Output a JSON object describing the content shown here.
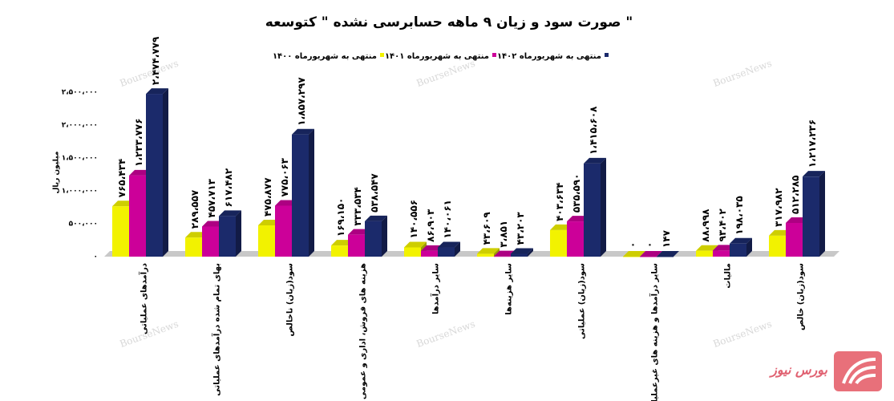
{
  "chart_data": {
    "type": "bar",
    "title": "صورت سود و زیان ۹ ماهه حسابرسی نشده \" کتوسعه \"",
    "y_label": "میلیون ریال",
    "watermark": "BourseNews",
    "logo_text": "بورس نیوز",
    "categories": [
      "درآمدهای عملیاتی",
      "بهای تمام شده درآمدهای عملیاتی",
      "سود(زیان) ناخالص",
      "هزینه های فروش، اداری و عمومی",
      "سایر درآمدها",
      "سایر هزینه‌ها",
      "سود(زیان) عملیاتی",
      "سایر درآمدها و هزینه های غیرعملیاتی",
      "مالیات",
      "سود(زیان) خالص"
    ],
    "series": [
      {
        "name": "منتهی به شهریورماه ۱۴۰۰",
        "color": "#f2f200",
        "values": [
          765434,
          289557,
          475877,
          169150,
          140556,
          43609,
          403634,
          0,
          88998,
          317982
        ],
        "value_labels": [
          "۷۶۵،۴۳۴",
          "۲۸۹،۵۵۷",
          "۴۷۵،۸۷۷",
          "۱۶۹،۱۵۰",
          "۱۴۰،۵۵۶",
          "۴۳،۶۰۹",
          "۴۰۳،۶۳۴",
          "۰",
          "۸۸،۹۹۸",
          "۳۱۷،۹۸۲"
        ]
      },
      {
        "name": "منتهی به شهریورماه ۱۴۰۱",
        "color": "#cc0099",
        "values": [
          1233776,
          457713,
          775063,
          333534,
          86903,
          3851,
          535590,
          0,
          93402,
          512285
        ],
        "value_labels": [
          "۱،۲۳۳،۷۷۶",
          "۴۵۷،۷۱۳",
          "۷۷۵،۰۶۳",
          "۳۳۳،۵۳۴",
          "۸۶،۹۰۳",
          "۳،۸۵۱",
          "۵۳۵،۵۹۰",
          "۰",
          "۹۳،۴۰۲",
          "۵۱۲،۲۸۵"
        ]
      },
      {
        "name": "منتهی به شهریورماه ۱۴۰۲",
        "color": "#1b2a6b",
        "values": [
          2474779,
          617482,
          1857297,
          538547,
          140061,
          43203,
          1415608,
          147,
          198035,
          1217236
        ],
        "value_labels": [
          "۲،۴۷۴،۷۷۹",
          "۶۱۷،۴۸۲",
          "۱،۸۵۷،۲۹۷",
          "۵۳۸،۵۴۷",
          "۱۴۰،۰۶۱",
          "۴۳،۲۰۳",
          "۱،۴۱۵،۶۰۸",
          "۱۴۷",
          "۱۹۸،۰۳۵",
          "۱،۲۱۷،۲۳۶"
        ]
      }
    ],
    "ylim": [
      0,
      2500000
    ],
    "yticks": [
      {
        "value": 0,
        "label": "۰"
      },
      {
        "value": 500000,
        "label": "۵۰۰،۰۰۰"
      },
      {
        "value": 1000000,
        "label": "۱،۰۰۰،۰۰۰"
      },
      {
        "value": 1500000,
        "label": "۱،۵۰۰،۰۰۰"
      },
      {
        "value": 2000000,
        "label": "۲،۰۰۰،۰۰۰"
      },
      {
        "value": 2500000,
        "label": "۲،۵۰۰،۰۰۰"
      }
    ],
    "legend": "top"
  }
}
